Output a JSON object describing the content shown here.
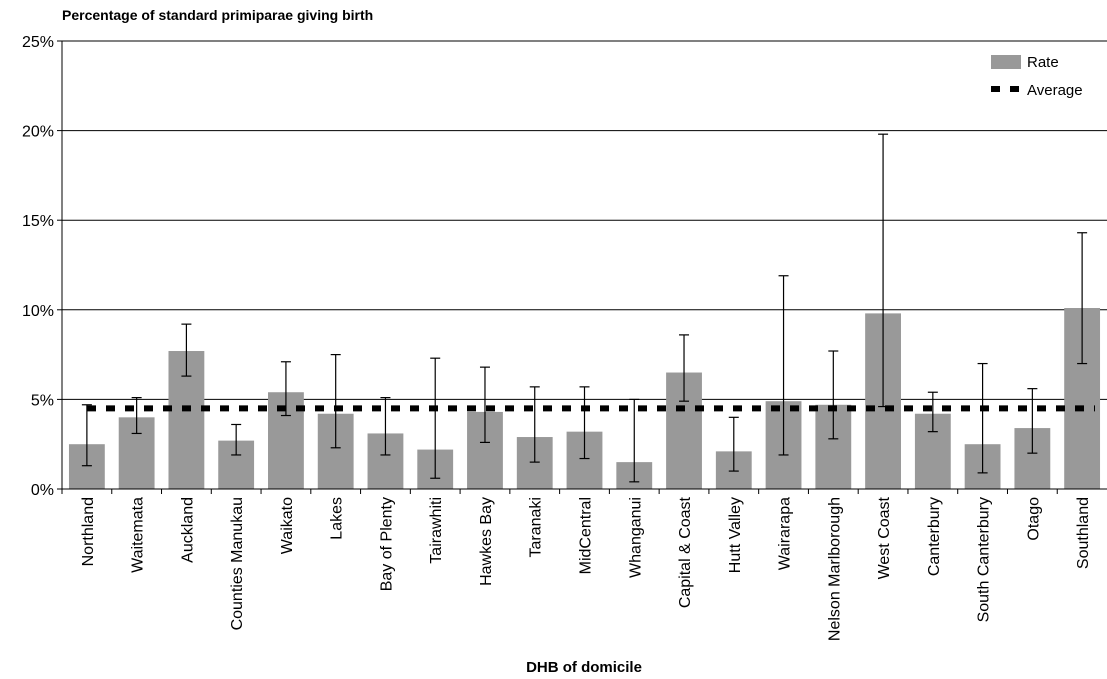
{
  "chart_data": {
    "type": "bar",
    "title": "Percentage of standard primiparae giving birth",
    "xlabel": "DHB of domicile",
    "ylabel": "",
    "ylim": [
      0,
      25
    ],
    "yticks": [
      0,
      5,
      10,
      15,
      20,
      25
    ],
    "ytick_labels": [
      "0%",
      "5%",
      "10%",
      "15%",
      "20%",
      "25%"
    ],
    "grid": true,
    "legend": "top-right",
    "bar_color": "#999999",
    "average_color": "#000000",
    "categories": [
      "Northland",
      "Waitemata",
      "Auckland",
      "Counties Manukau",
      "Waikato",
      "Lakes",
      "Bay of Plenty",
      "Tairawhiti",
      "Hawkes Bay",
      "Taranaki",
      "MidCentral",
      "Whanganui",
      "Capital & Coast",
      "Hutt Valley",
      "Wairarapa",
      "Nelson Marlborough",
      "West Coast",
      "Canterbury",
      "South Canterbury",
      "Otago",
      "Southland"
    ],
    "series": [
      {
        "name": "Rate",
        "values": [
          2.5,
          4.0,
          7.7,
          2.7,
          5.4,
          4.2,
          3.1,
          2.2,
          4.3,
          2.9,
          3.2,
          1.5,
          6.5,
          2.1,
          4.9,
          4.7,
          9.8,
          4.2,
          2.5,
          3.4,
          10.1
        ],
        "lower": [
          1.3,
          3.1,
          6.3,
          1.9,
          4.1,
          2.3,
          1.9,
          0.6,
          2.6,
          1.5,
          1.7,
          0.4,
          4.9,
          1.0,
          1.9,
          2.8,
          4.6,
          3.2,
          0.9,
          2.0,
          7.0
        ],
        "upper": [
          4.7,
          5.1,
          9.2,
          3.6,
          7.1,
          7.5,
          5.1,
          7.3,
          6.8,
          5.7,
          5.7,
          5.0,
          8.6,
          4.0,
          11.9,
          7.7,
          19.8,
          5.4,
          7.0,
          5.6,
          14.3
        ]
      },
      {
        "name": "Average",
        "value": 4.5
      }
    ]
  }
}
